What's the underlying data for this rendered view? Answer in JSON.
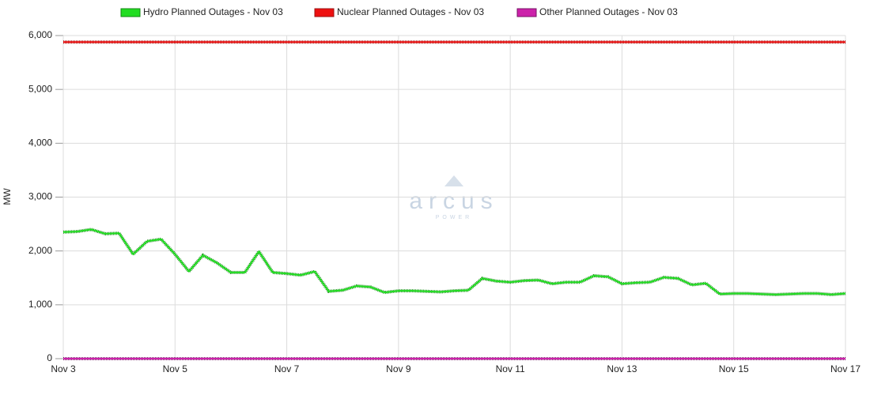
{
  "chart_data": {
    "type": "line",
    "y_label": "MW",
    "watermark": {
      "brand": "arcus",
      "sub": "POWER"
    },
    "x": [
      3,
      3.25,
      3.5,
      3.75,
      4,
      4.25,
      4.5,
      4.75,
      5,
      5.25,
      5.5,
      5.75,
      6,
      6.25,
      6.5,
      6.75,
      7,
      7.25,
      7.5,
      7.75,
      8,
      8.25,
      8.5,
      8.75,
      9,
      9.25,
      9.5,
      9.75,
      10,
      10.25,
      10.5,
      10.75,
      11,
      11.25,
      11.5,
      11.75,
      12,
      12.25,
      12.5,
      12.75,
      13,
      13.25,
      13.5,
      13.75,
      14,
      14.25,
      14.5,
      14.75,
      15,
      15.25,
      15.5,
      15.75,
      16,
      16.25,
      16.5,
      16.75,
      17
    ],
    "series": [
      {
        "name": "Hydro Planned Outages - Nov 03",
        "color": "#22dd22",
        "edge": "#118811",
        "values": [
          2350,
          2360,
          2400,
          2320,
          2330,
          1940,
          2180,
          2220,
          1940,
          1620,
          1920,
          1780,
          1600,
          1600,
          1990,
          1600,
          1580,
          1550,
          1620,
          1250,
          1270,
          1350,
          1330,
          1230,
          1260,
          1260,
          1250,
          1240,
          1260,
          1270,
          1490,
          1440,
          1420,
          1450,
          1460,
          1390,
          1420,
          1420,
          1540,
          1520,
          1390,
          1410,
          1420,
          1510,
          1490,
          1370,
          1400,
          1200,
          1210,
          1210,
          1200,
          1190,
          1200,
          1210,
          1210,
          1190,
          1210
        ]
      },
      {
        "name": "Nuclear Planned Outages - Nov 03",
        "color": "#ee1111",
        "edge": "#991111",
        "values": [
          5880,
          5880,
          5880,
          5880,
          5880,
          5880,
          5880,
          5880,
          5880,
          5880,
          5880,
          5880,
          5880,
          5880,
          5880,
          5880,
          5880,
          5880,
          5880,
          5880,
          5880,
          5880,
          5880,
          5880,
          5880,
          5880,
          5880,
          5880,
          5880,
          5880,
          5880,
          5880,
          5880,
          5880,
          5880,
          5880,
          5880,
          5880,
          5880,
          5880,
          5880,
          5880,
          5880,
          5880,
          5880,
          5880,
          5880,
          5880,
          5880,
          5880,
          5880,
          5880,
          5880,
          5880,
          5880,
          5880,
          5880
        ]
      },
      {
        "name": "Other Planned Outages - Nov 03",
        "color": "#cc22aa",
        "edge": "#771166",
        "values": [
          0,
          0,
          0,
          0,
          0,
          0,
          0,
          0,
          0,
          0,
          0,
          0,
          0,
          0,
          0,
          0,
          0,
          0,
          0,
          0,
          0,
          0,
          0,
          0,
          0,
          0,
          0,
          0,
          0,
          0,
          0,
          0,
          0,
          0,
          0,
          0,
          0,
          0,
          0,
          0,
          0,
          0,
          0,
          0,
          0,
          0,
          0,
          0,
          0,
          0,
          0,
          0,
          0,
          0,
          0,
          0,
          0
        ]
      }
    ],
    "xlim": [
      3,
      17
    ],
    "xticks": [
      {
        "value": 3,
        "label": "Nov 3"
      },
      {
        "value": 5,
        "label": "Nov 5"
      },
      {
        "value": 7,
        "label": "Nov 7"
      },
      {
        "value": 9,
        "label": "Nov 9"
      },
      {
        "value": 11,
        "label": "Nov 11"
      },
      {
        "value": 13,
        "label": "Nov 13"
      },
      {
        "value": 15,
        "label": "Nov 15"
      },
      {
        "value": 17,
        "label": "Nov 17"
      }
    ],
    "ylim": [
      0,
      6000
    ],
    "yticks": [
      0,
      {
        "value": 1000,
        "label": "1,000"
      },
      {
        "value": 2000,
        "label": "2,000"
      },
      {
        "value": 3000,
        "label": "3,000"
      },
      {
        "value": 4000,
        "label": "4,000"
      },
      {
        "value": 5000,
        "label": "5,000"
      },
      {
        "value": 6000,
        "label": "6,000"
      }
    ],
    "grid": true
  }
}
